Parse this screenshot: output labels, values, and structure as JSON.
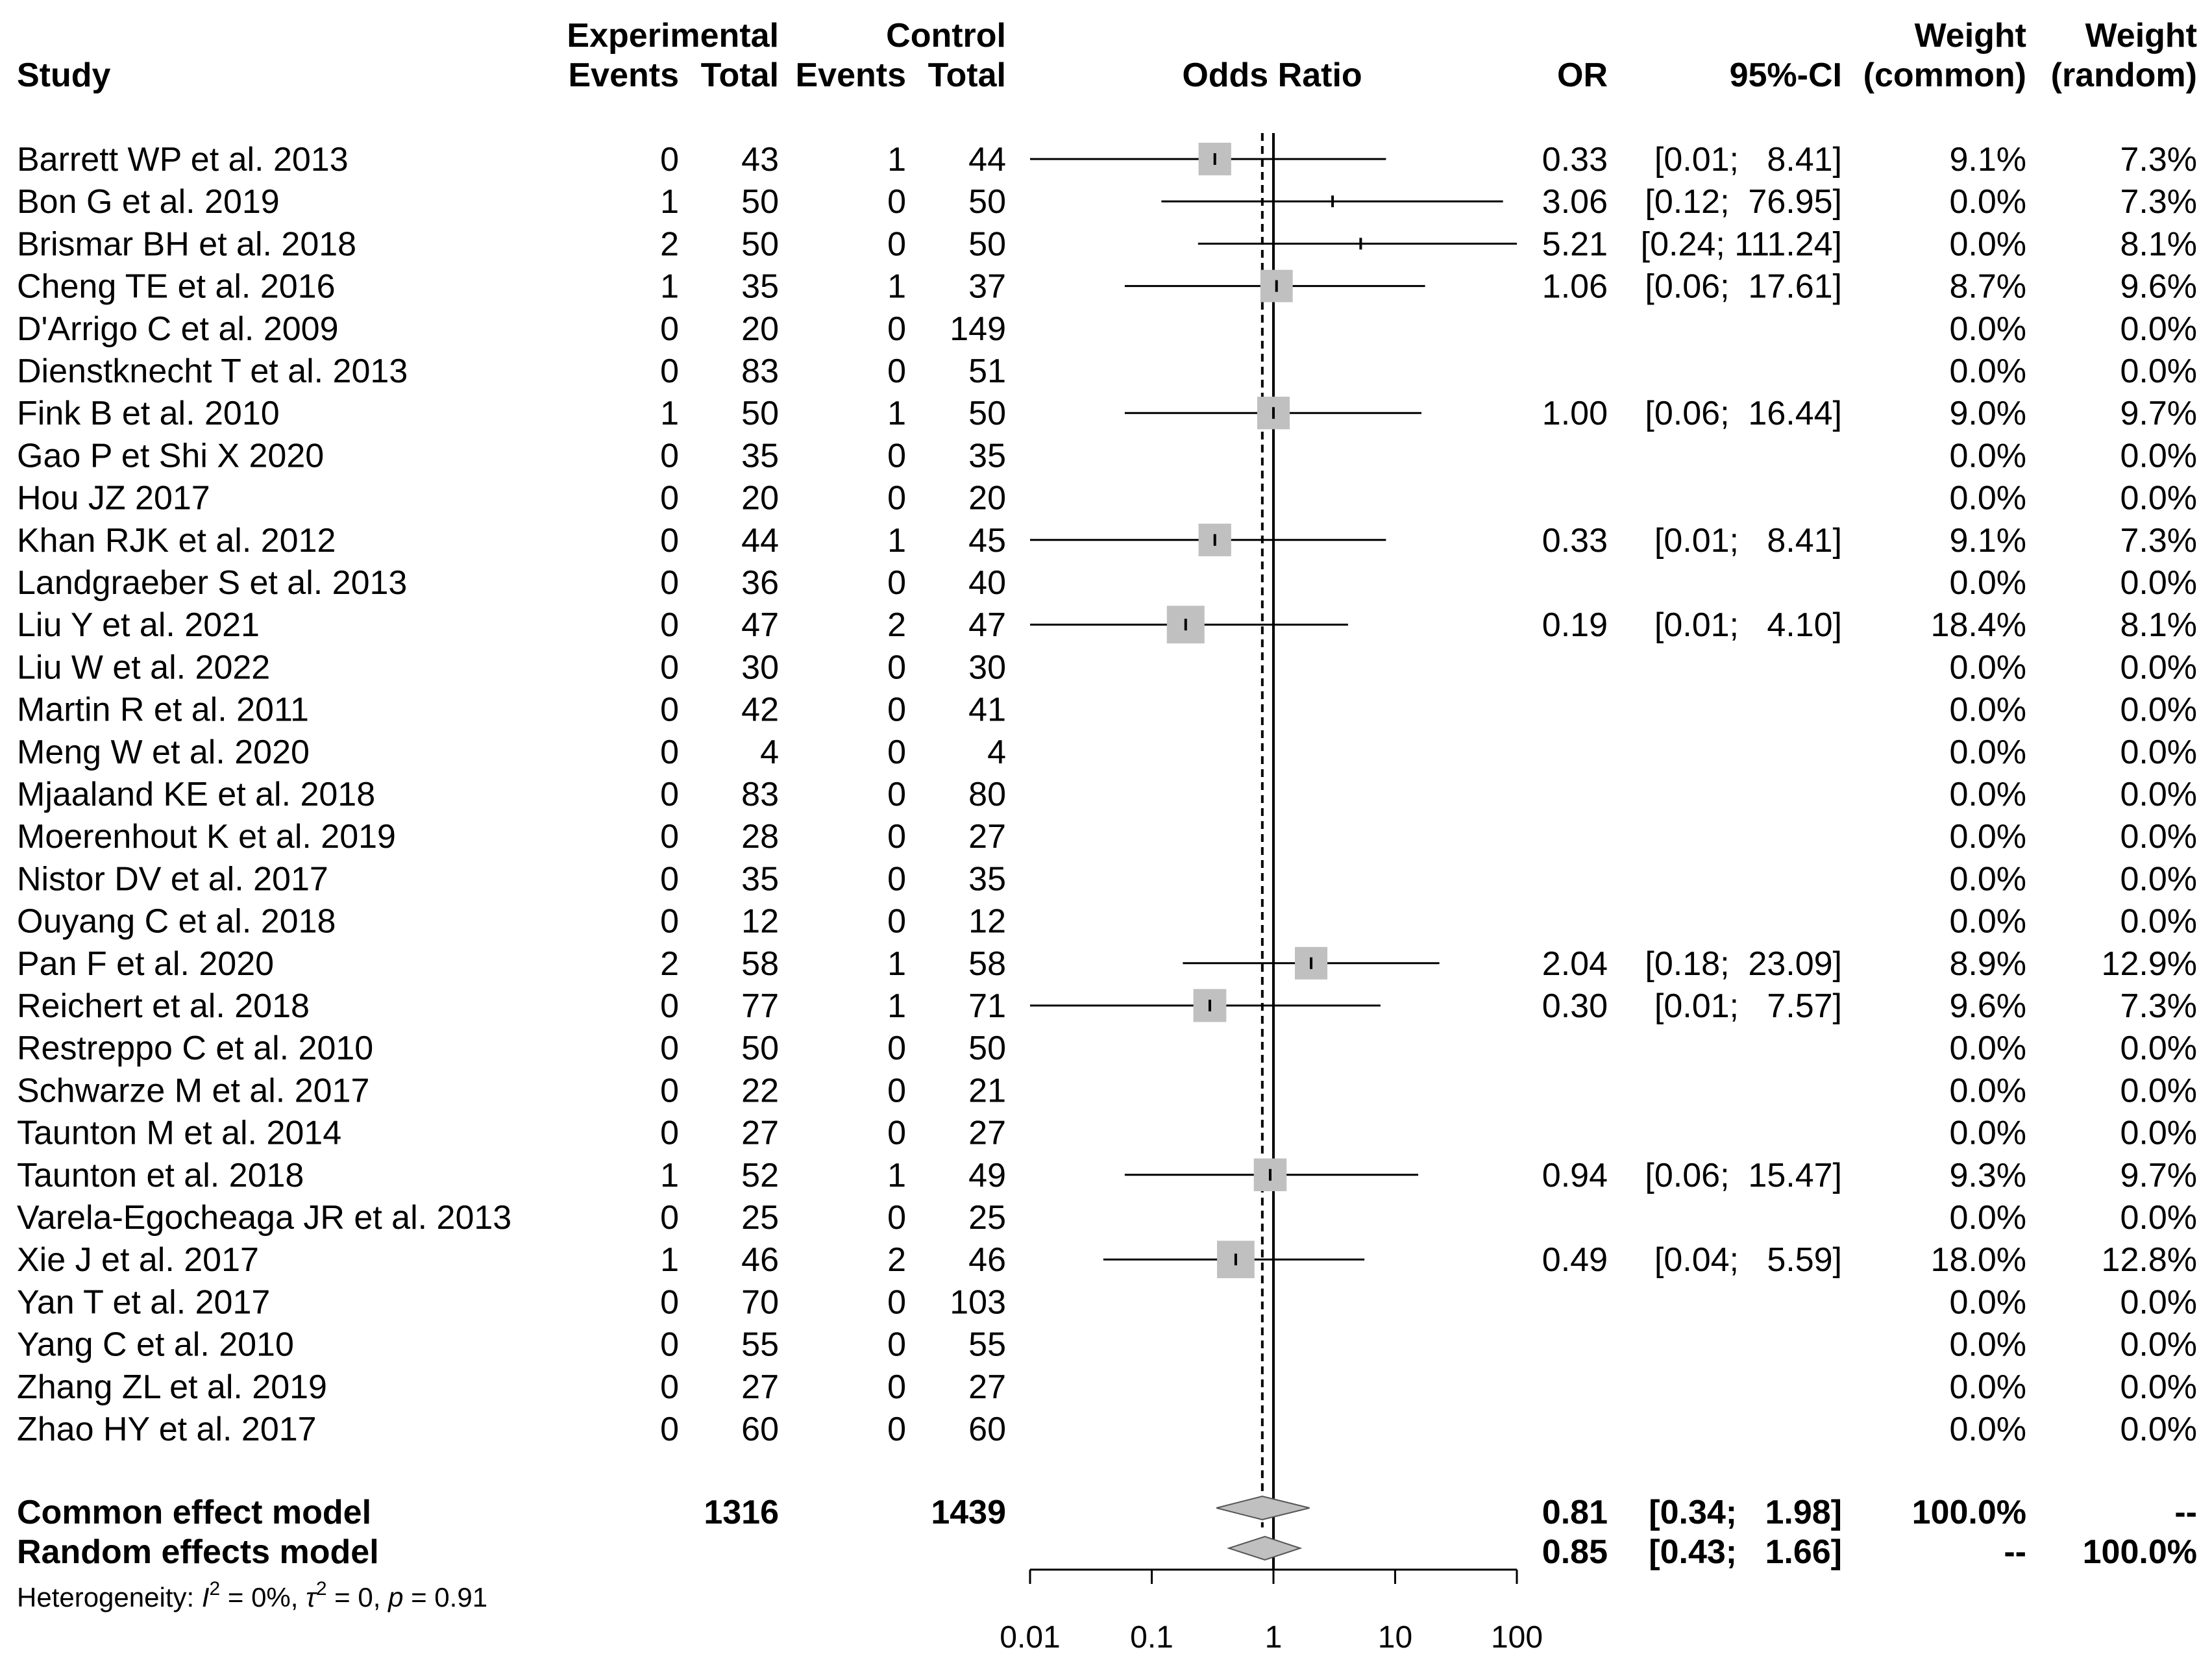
{
  "header": {
    "study": "Study",
    "experimental": "Experimental",
    "control": "Control",
    "events": "Events",
    "total": "Total",
    "odds_ratio": "Odds Ratio",
    "or": "OR",
    "ci": "95%-CI",
    "weight": "Weight",
    "common": "(common)",
    "random": "(random)"
  },
  "studies": [
    {
      "name": "Barrett WP et al. 2013",
      "ee": "0",
      "et": "43",
      "ce": "1",
      "ct": "44",
      "or_text": "0.33",
      "ci_text": "[0.01;   8.41]",
      "wc": "9.1%",
      "wr": "7.3%"
    },
    {
      "name": "Bon G et al. 2019",
      "ee": "1",
      "et": "50",
      "ce": "0",
      "ct": "50",
      "or_text": "3.06",
      "ci_text": "[0.12;  76.95]",
      "wc": "0.0%",
      "wr": "7.3%"
    },
    {
      "name": "Brismar BH et al. 2018",
      "ee": "2",
      "et": "50",
      "ce": "0",
      "ct": "50",
      "or_text": "5.21",
      "ci_text": "[0.24; 111.24]",
      "wc": "0.0%",
      "wr": "8.1%"
    },
    {
      "name": "Cheng TE et al. 2016",
      "ee": "1",
      "et": "35",
      "ce": "1",
      "ct": "37",
      "or_text": "1.06",
      "ci_text": "[0.06;  17.61]",
      "wc": "8.7%",
      "wr": "9.6%"
    },
    {
      "name": "D'Arrigo C et al. 2009",
      "ee": "0",
      "et": "20",
      "ce": "0",
      "ct": "149",
      "or_text": "",
      "ci_text": "",
      "wc": "0.0%",
      "wr": "0.0%"
    },
    {
      "name": "Dienstknecht T et al. 2013",
      "ee": "0",
      "et": "83",
      "ce": "0",
      "ct": "51",
      "or_text": "",
      "ci_text": "",
      "wc": "0.0%",
      "wr": "0.0%"
    },
    {
      "name": "Fink B et al.  2010",
      "ee": "1",
      "et": "50",
      "ce": "1",
      "ct": "50",
      "or_text": "1.00",
      "ci_text": "[0.06;  16.44]",
      "wc": "9.0%",
      "wr": "9.7%"
    },
    {
      "name": "Gao P et Shi X 2020",
      "ee": "0",
      "et": "35",
      "ce": "0",
      "ct": "35",
      "or_text": "",
      "ci_text": "",
      "wc": "0.0%",
      "wr": "0.0%"
    },
    {
      "name": "Hou JZ 2017",
      "ee": "0",
      "et": "20",
      "ce": "0",
      "ct": "20",
      "or_text": "",
      "ci_text": "",
      "wc": "0.0%",
      "wr": "0.0%"
    },
    {
      "name": "Khan RJK et al. 2012",
      "ee": "0",
      "et": "44",
      "ce": "1",
      "ct": "45",
      "or_text": "0.33",
      "ci_text": "[0.01;   8.41]",
      "wc": "9.1%",
      "wr": "7.3%"
    },
    {
      "name": "Landgraeber S et al.  2013",
      "ee": "0",
      "et": "36",
      "ce": "0",
      "ct": "40",
      "or_text": "",
      "ci_text": "",
      "wc": "0.0%",
      "wr": "0.0%"
    },
    {
      "name": "Liu Y et al. 2021",
      "ee": "0",
      "et": "47",
      "ce": "2",
      "ct": "47",
      "or_text": "0.19",
      "ci_text": "[0.01;   4.10]",
      "wc": "18.4%",
      "wr": "8.1%"
    },
    {
      "name": "Liu W et al. 2022",
      "ee": "0",
      "et": "30",
      "ce": "0",
      "ct": "30",
      "or_text": "",
      "ci_text": "",
      "wc": "0.0%",
      "wr": "0.0%"
    },
    {
      "name": "Martin R et al. 2011",
      "ee": "0",
      "et": "42",
      "ce": "0",
      "ct": "41",
      "or_text": "",
      "ci_text": "",
      "wc": "0.0%",
      "wr": "0.0%"
    },
    {
      "name": "Meng W et al. 2020",
      "ee": "0",
      "et": "4",
      "ce": "0",
      "ct": "4",
      "or_text": "",
      "ci_text": "",
      "wc": "0.0%",
      "wr": "0.0%"
    },
    {
      "name": "Mjaaland KE et al. 2018",
      "ee": "0",
      "et": "83",
      "ce": "0",
      "ct": "80",
      "or_text": "",
      "ci_text": "",
      "wc": "0.0%",
      "wr": "0.0%"
    },
    {
      "name": "Moerenhout K et al.  2019",
      "ee": "0",
      "et": "28",
      "ce": "0",
      "ct": "27",
      "or_text": "",
      "ci_text": "",
      "wc": "0.0%",
      "wr": "0.0%"
    },
    {
      "name": "Nistor DV et al. 2017",
      "ee": "0",
      "et": "35",
      "ce": "0",
      "ct": "35",
      "or_text": "",
      "ci_text": "",
      "wc": "0.0%",
      "wr": "0.0%"
    },
    {
      "name": "Ouyang C et al. 2018",
      "ee": "0",
      "et": "12",
      "ce": "0",
      "ct": "12",
      "or_text": "",
      "ci_text": "",
      "wc": "0.0%",
      "wr": "0.0%"
    },
    {
      "name": "Pan F et al. 2020",
      "ee": "2",
      "et": "58",
      "ce": "1",
      "ct": "58",
      "or_text": "2.04",
      "ci_text": "[0.18;  23.09]",
      "wc": "8.9%",
      "wr": "12.9%"
    },
    {
      "name": "Reichert et al. 2018",
      "ee": "0",
      "et": "77",
      "ce": "1",
      "ct": "71",
      "or_text": "0.30",
      "ci_text": "[0.01;   7.57]",
      "wc": "9.6%",
      "wr": "7.3%"
    },
    {
      "name": "Restreppo C et al. 2010",
      "ee": "0",
      "et": "50",
      "ce": "0",
      "ct": "50",
      "or_text": "",
      "ci_text": "",
      "wc": "0.0%",
      "wr": "0.0%"
    },
    {
      "name": "Schwarze M et al. 2017",
      "ee": "0",
      "et": "22",
      "ce": "0",
      "ct": "21",
      "or_text": "",
      "ci_text": "",
      "wc": "0.0%",
      "wr": "0.0%"
    },
    {
      "name": "Taunton M et al. 2014",
      "ee": "0",
      "et": "27",
      "ce": "0",
      "ct": "27",
      "or_text": "",
      "ci_text": "",
      "wc": "0.0%",
      "wr": "0.0%"
    },
    {
      "name": "Taunton et al. 2018",
      "ee": "1",
      "et": "52",
      "ce": "1",
      "ct": "49",
      "or_text": "0.94",
      "ci_text": "[0.06;  15.47]",
      "wc": "9.3%",
      "wr": "9.7%"
    },
    {
      "name": "Varela-Egocheaga JR et al.  2013",
      "ee": "0",
      "et": "25",
      "ce": "0",
      "ct": "25",
      "or_text": "",
      "ci_text": "",
      "wc": "0.0%",
      "wr": "0.0%"
    },
    {
      "name": "Xie J et al.  2017",
      "ee": "1",
      "et": "46",
      "ce": "2",
      "ct": "46",
      "or_text": "0.49",
      "ci_text": "[0.04;   5.59]",
      "wc": "18.0%",
      "wr": "12.8%"
    },
    {
      "name": "Yan T et al. 2017",
      "ee": "0",
      "et": "70",
      "ce": "0",
      "ct": "103",
      "or_text": "",
      "ci_text": "",
      "wc": "0.0%",
      "wr": "0.0%"
    },
    {
      "name": "Yang C et al. 2010",
      "ee": "0",
      "et": "55",
      "ce": "0",
      "ct": "55",
      "or_text": "",
      "ci_text": "",
      "wc": "0.0%",
      "wr": "0.0%"
    },
    {
      "name": "Zhang ZL et al. 2019",
      "ee": "0",
      "et": "27",
      "ce": "0",
      "ct": "27",
      "or_text": "",
      "ci_text": "",
      "wc": "0.0%",
      "wr": "0.0%"
    },
    {
      "name": "Zhao HY et al. 2017",
      "ee": "0",
      "et": "60",
      "ce": "0",
      "ct": "60",
      "or_text": "",
      "ci_text": "",
      "wc": "0.0%",
      "wr": "0.0%"
    }
  ],
  "summary": {
    "common": {
      "label": "Common effect model",
      "et": "1316",
      "ct": "1439",
      "or_text": "0.81",
      "ci_text": "[0.34;   1.98]",
      "wc": "100.0%",
      "wr": "--"
    },
    "random": {
      "label": "Random effects model",
      "or_text": "0.85",
      "ci_text": "[0.43;   1.66]",
      "wc": "--",
      "wr": "100.0%"
    }
  },
  "heterogeneity": {
    "prefix": "Heterogeneity: ",
    "i2_symbol": "I",
    "i2_value": " = 0%, ",
    "tau_symbol": "τ",
    "tau_value": " = 0, ",
    "p_symbol": "p",
    "p_value": " = 0.91"
  },
  "colors": {
    "square": "#c0c0c0",
    "diamond": "#c0c0c0",
    "line": "#000000"
  },
  "chart_data": {
    "type": "forest",
    "measure": "Odds Ratio",
    "scale": "log",
    "xlim": [
      0.01,
      100
    ],
    "ticks": [
      0.01,
      0.1,
      1,
      10,
      100
    ],
    "tick_labels": [
      "0.01",
      "0.1",
      "1",
      "10",
      "100"
    ],
    "null_value": 1,
    "studies": [
      {
        "name": "Barrett WP et al. 2013",
        "or": 0.33,
        "lo": 0.01,
        "hi": 8.41,
        "w_common": 9.1
      },
      {
        "name": "Bon G et al. 2019",
        "or": 3.06,
        "lo": 0.12,
        "hi": 76.95,
        "w_common": 0.0
      },
      {
        "name": "Brismar BH et al. 2018",
        "or": 5.21,
        "lo": 0.24,
        "hi": 111.24,
        "w_common": 0.0
      },
      {
        "name": "Cheng TE et al. 2016",
        "or": 1.06,
        "lo": 0.06,
        "hi": 17.61,
        "w_common": 8.7
      },
      null,
      null,
      {
        "name": "Fink B et al.  2010",
        "or": 1.0,
        "lo": 0.06,
        "hi": 16.44,
        "w_common": 9.0
      },
      null,
      null,
      {
        "name": "Khan RJK et al. 2012",
        "or": 0.33,
        "lo": 0.01,
        "hi": 8.41,
        "w_common": 9.1
      },
      null,
      {
        "name": "Liu Y et al. 2021",
        "or": 0.19,
        "lo": 0.01,
        "hi": 4.1,
        "w_common": 18.4
      },
      null,
      null,
      null,
      null,
      null,
      null,
      null,
      {
        "name": "Pan F et al. 2020",
        "or": 2.04,
        "lo": 0.18,
        "hi": 23.09,
        "w_common": 8.9
      },
      {
        "name": "Reichert et al. 2018",
        "or": 0.3,
        "lo": 0.01,
        "hi": 7.57,
        "w_common": 9.6
      },
      null,
      null,
      null,
      {
        "name": "Taunton et al. 2018",
        "or": 0.94,
        "lo": 0.06,
        "hi": 15.47,
        "w_common": 9.3
      },
      null,
      {
        "name": "Xie J et al.  2017",
        "or": 0.49,
        "lo": 0.04,
        "hi": 5.59,
        "w_common": 18.0
      },
      null,
      null,
      null,
      null
    ],
    "common_effect": {
      "or": 0.81,
      "lo": 0.34,
      "hi": 1.98
    },
    "random_effects": {
      "or": 0.85,
      "lo": 0.43,
      "hi": 1.66
    }
  }
}
